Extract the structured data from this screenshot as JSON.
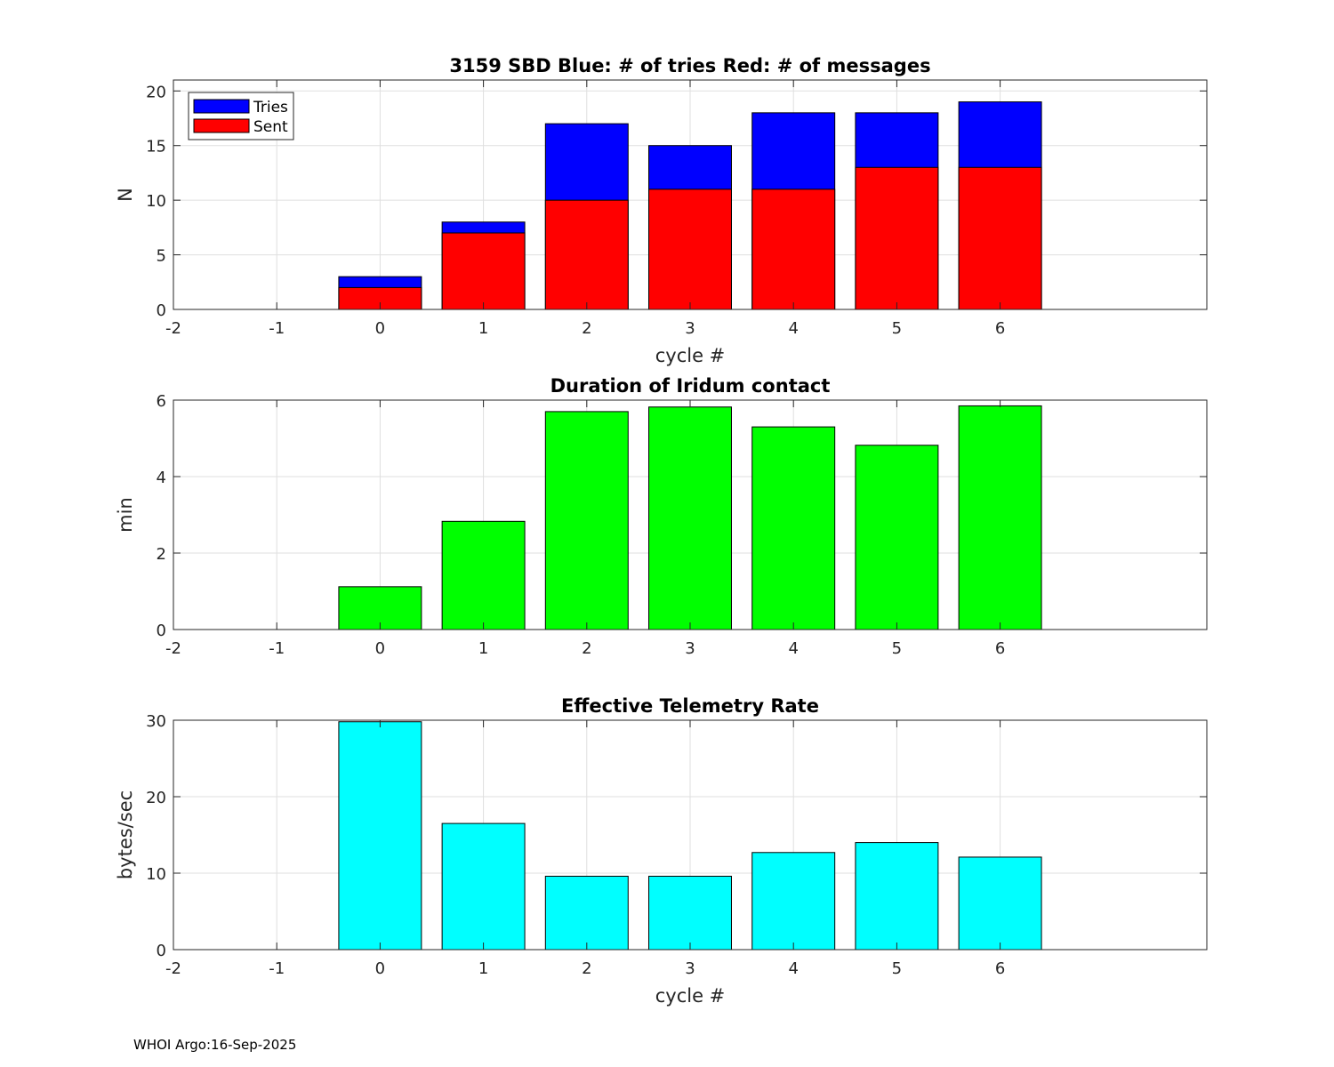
{
  "chart_data": [
    {
      "type": "bar",
      "stacked": false,
      "title": "3159 SBD  Blue: # of tries   Red: # of messages",
      "xlabel": "cycle #",
      "ylabel": "N",
      "xlim": [
        -2,
        8
      ],
      "ylim": [
        0,
        21
      ],
      "xticks": [
        -2,
        -1,
        0,
        1,
        2,
        3,
        4,
        5,
        6
      ],
      "yticks": [
        0,
        5,
        10,
        15,
        20
      ],
      "grid": true,
      "legend": "top-left",
      "x": [
        0,
        1,
        2,
        3,
        4,
        5,
        6
      ],
      "series": [
        {
          "name": "Tries",
          "color": "#0000ff",
          "values": [
            3,
            8,
            17,
            15,
            18,
            18,
            19
          ]
        },
        {
          "name": "Sent",
          "color": "#ff0000",
          "values": [
            2,
            7,
            10,
            11,
            11,
            13,
            13
          ]
        }
      ]
    },
    {
      "type": "bar",
      "title": "Duration of Iridum contact",
      "xlabel": "",
      "ylabel": "min",
      "xlim": [
        -2,
        8
      ],
      "ylim": [
        0,
        6
      ],
      "xticks": [
        -2,
        -1,
        0,
        1,
        2,
        3,
        4,
        5,
        6
      ],
      "yticks": [
        0,
        2,
        4,
        6
      ],
      "grid": true,
      "x": [
        0,
        1,
        2,
        3,
        4,
        5,
        6
      ],
      "series": [
        {
          "name": "Duration",
          "color": "#00ff00",
          "values": [
            1.12,
            2.83,
            5.7,
            5.82,
            5.3,
            4.82,
            5.85
          ]
        }
      ]
    },
    {
      "type": "bar",
      "title": "Effective Telemetry Rate",
      "xlabel": "cycle #",
      "ylabel": "bytes/sec",
      "xlim": [
        -2,
        8
      ],
      "ylim": [
        0,
        30
      ],
      "xticks": [
        -2,
        -1,
        0,
        1,
        2,
        3,
        4,
        5,
        6
      ],
      "yticks": [
        0,
        10,
        20,
        30
      ],
      "grid": true,
      "x": [
        0,
        1,
        2,
        3,
        4,
        5,
        6
      ],
      "series": [
        {
          "name": "Rate",
          "color": "#00ffff",
          "values": [
            29.8,
            16.5,
            9.6,
            9.6,
            12.7,
            14.0,
            12.1
          ]
        }
      ]
    }
  ],
  "footer": "WHOI Argo:16-Sep-2025"
}
